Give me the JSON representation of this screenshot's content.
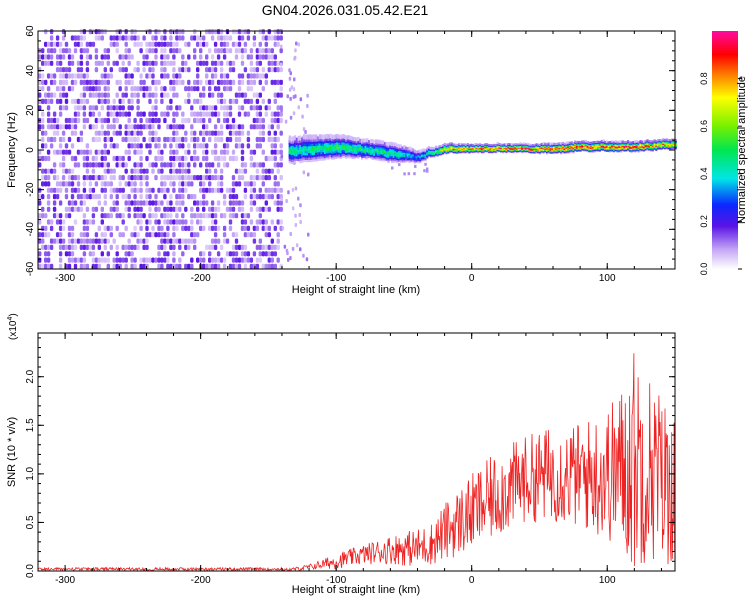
{
  "title": "GN04.2026.031.05.42.E21",
  "chart_data": [
    {
      "type": "heatmap",
      "xlabel": "Height of straight line (km)",
      "ylabel": "Frequency (Hz)",
      "xlim": [
        -320,
        150
      ],
      "ylim": [
        -60,
        60
      ],
      "x_ticks": [
        -300,
        -200,
        -100,
        0,
        100
      ],
      "x_tick_labels": [
        "-300",
        "-200",
        "-100",
        "0",
        "100"
      ],
      "y_ticks": [
        -60,
        -40,
        -20,
        0,
        20,
        40,
        60
      ],
      "y_tick_labels": [
        "-60",
        "-40",
        "-20",
        "0",
        "20",
        "40",
        "60"
      ],
      "colorbar": {
        "label": "Normalized spectral amplitude",
        "range": [
          0.0,
          1.0
        ],
        "ticks": [
          0.0,
          0.2,
          0.4,
          0.6,
          0.8
        ],
        "tick_labels": [
          "0.0",
          "0.2",
          "0.4",
          "0.6",
          "0.8"
        ]
      },
      "noise_region": {
        "x_range": [
          -320,
          -140
        ],
        "freq_range": [
          -60,
          60
        ],
        "amplitude": 0.15
      },
      "signal_track": {
        "x": [
          -135,
          -120,
          -100,
          -80,
          -60,
          -40,
          -30,
          -20,
          0,
          20,
          40,
          60,
          80,
          100,
          120,
          140,
          150
        ],
        "frequency": [
          0,
          1,
          2,
          1,
          -1,
          -3,
          -1,
          1,
          1,
          1,
          1,
          1,
          2,
          2,
          2,
          3,
          3
        ],
        "amplitude": [
          0.45,
          0.45,
          0.5,
          0.45,
          0.45,
          0.35,
          0.5,
          0.75,
          0.85,
          0.85,
          0.9,
          0.85,
          0.9,
          0.88,
          0.9,
          0.8,
          0.7
        ],
        "bandwidth_hz": [
          16,
          16,
          14,
          12,
          12,
          8,
          6,
          6,
          5,
          5,
          5,
          6,
          6,
          6,
          6,
          6,
          6
        ]
      }
    },
    {
      "type": "line",
      "xlabel": "Height of straight line (km)",
      "ylabel": "SNR (10 * v/v)",
      "y_multiplier_label": "(x10",
      "y_multiplier_exp": "4",
      "xlim": [
        -320,
        150
      ],
      "ylim": [
        0,
        2.45
      ],
      "x_ticks": [
        -300,
        -200,
        -100,
        0,
        100
      ],
      "x_tick_labels": [
        "-300",
        "-200",
        "-100",
        "0",
        "100"
      ],
      "y_ticks": [
        0,
        0.5,
        1.0,
        1.5,
        2.0
      ],
      "y_tick_labels": [
        "0.0",
        "0.5",
        "1.0",
        "1.5",
        "2.0"
      ],
      "series": [
        {
          "color": "#ee2222",
          "envelope_x": [
            -320,
            -140,
            -130,
            -120,
            -110,
            -100,
            -80,
            -60,
            -40,
            -30,
            -20,
            -10,
            0,
            20,
            40,
            60,
            80,
            100,
            110,
            120,
            130,
            140,
            150
          ],
          "envelope_mean": [
            0.01,
            0.01,
            0.02,
            0.04,
            0.07,
            0.1,
            0.17,
            0.22,
            0.24,
            0.28,
            0.4,
            0.5,
            0.6,
            0.8,
            0.95,
            1.0,
            0.98,
            1.0,
            1.05,
            1.15,
            1.1,
            0.95,
            0.85
          ],
          "envelope_amplitude": [
            0.01,
            0.01,
            0.02,
            0.03,
            0.05,
            0.08,
            0.1,
            0.15,
            0.2,
            0.22,
            0.3,
            0.35,
            0.4,
            0.45,
            0.45,
            0.5,
            0.55,
            0.7,
            0.85,
            1.2,
            1.0,
            0.9,
            0.8
          ]
        }
      ]
    }
  ]
}
